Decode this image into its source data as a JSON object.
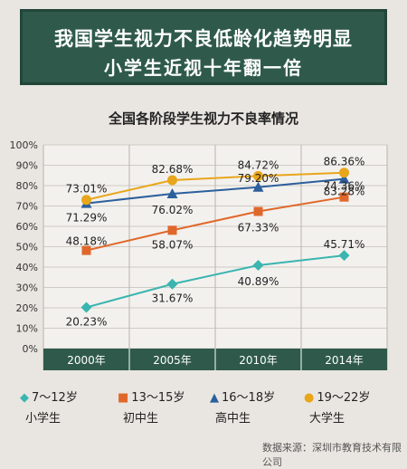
{
  "header": {
    "line1": "我国学生视力不良低龄化趋势明显",
    "line2": "小学生近视十年翻一倍"
  },
  "footer_text": "数据来源：深圳市教育技术有限公司",
  "legend": [
    {
      "marker": "diamond",
      "symbol": "◆",
      "range": "7～12岁",
      "label": "小学生",
      "color": "#3ab5b0"
    },
    {
      "marker": "square",
      "symbol": "■",
      "range": "13～15岁",
      "label": "初中生",
      "color": "#e0682a"
    },
    {
      "marker": "triangle",
      "symbol": "▲",
      "range": "16～18岁",
      "label": "高中生",
      "color": "#2c5f9c"
    },
    {
      "marker": "circle",
      "symbol": "●",
      "range": "19～22岁",
      "label": "大学生",
      "color": "#e8a61a"
    }
  ],
  "chart_data": {
    "type": "line",
    "title": "全国各阶段学生视力不良率情况",
    "categories": [
      "2000年",
      "2005年",
      "2010年",
      "2014年"
    ],
    "ylim": [
      0,
      100
    ],
    "yticks": [
      "0%",
      "10%",
      "20%",
      "30%",
      "40%",
      "50%",
      "60%",
      "70%",
      "80%",
      "90%",
      "100%"
    ],
    "grid": true,
    "legend_position": "bottom",
    "series": [
      {
        "name": "小学生",
        "marker": "diamond",
        "color": "#3ab5b0",
        "values": [
          20.23,
          31.67,
          40.89,
          45.71
        ],
        "labels": [
          "20.23%",
          "31.67%",
          "40.89%",
          "45.71%"
        ]
      },
      {
        "name": "初中生",
        "marker": "square",
        "color": "#e0682a",
        "values": [
          48.18,
          58.07,
          67.33,
          74.36
        ],
        "labels": [
          "48.18%",
          "58.07%",
          "67.33%",
          "74.36%"
        ]
      },
      {
        "name": "高中生",
        "marker": "triangle",
        "color": "#2c5f9c",
        "values": [
          71.29,
          76.02,
          79.2,
          83.28
        ],
        "labels": [
          "71.29%",
          "76.02%",
          "79.20%",
          "83.28%"
        ]
      },
      {
        "name": "大学生",
        "marker": "circle",
        "color": "#e8a61a",
        "values": [
          73.01,
          82.68,
          84.72,
          86.36
        ],
        "labels": [
          "73.01%",
          "82.68%",
          "84.72%",
          "86.36%"
        ]
      }
    ]
  }
}
